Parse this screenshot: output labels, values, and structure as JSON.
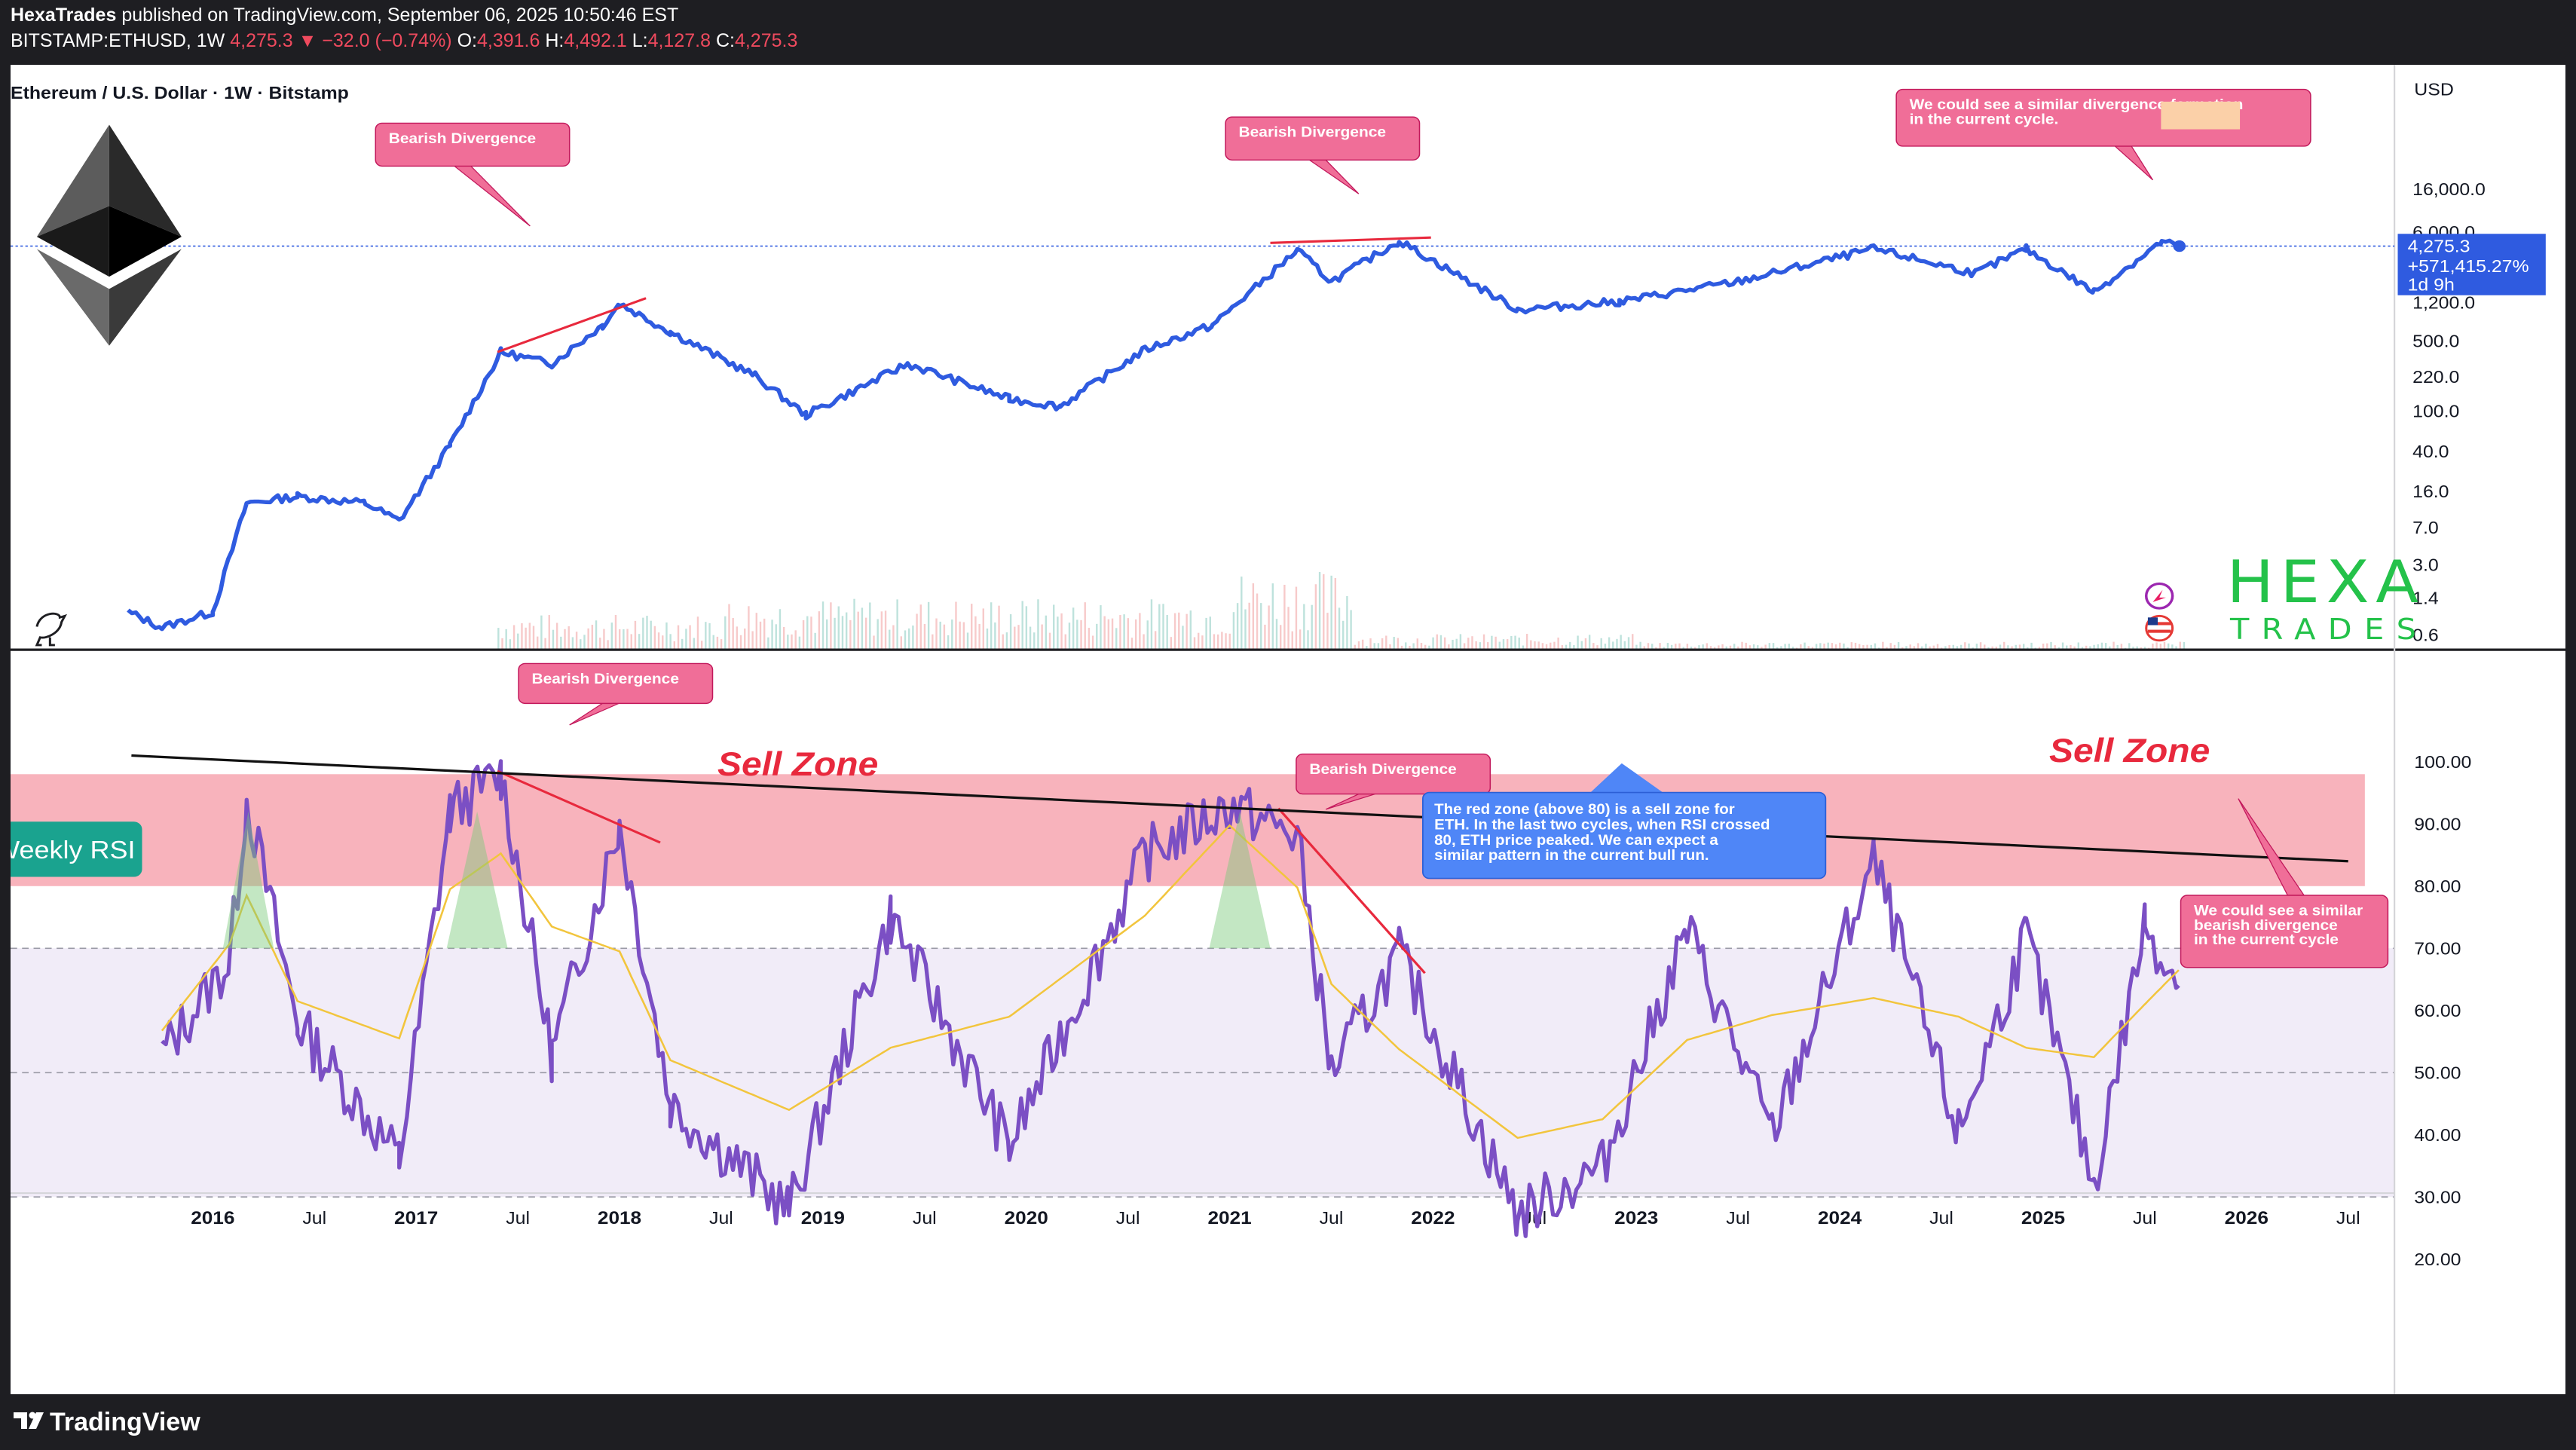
{
  "header": {
    "publisher": "HexaTrades",
    "published_text": " published on TradingView.com, September 06, 2025 10:50:46 EST",
    "symbol": "BITSTAMP:ETHUSD, 1W ",
    "last": "4,275.3",
    "change": " ▼ −32.0 (−0.74%)",
    "o_label": " O:",
    "o_value": "4,391.6",
    "h_label": " H:",
    "h_value": "4,492.1",
    "l_label": " L:",
    "l_value": "4,127.8",
    "c_label": " C:",
    "c_value": "4,275.3"
  },
  "footer": {
    "brand": "TradingView"
  },
  "colors": {
    "price_line": "#2f5be0",
    "rsi_line": "#7b4fc4",
    "rsi_ma": "#f2c53d",
    "sell_zone": "#f8b3bc",
    "rsi_band": "#f1ecf8",
    "callout": "#f06e98",
    "info_box": "#4f86f7",
    "accent_red": "#e8293d",
    "hexa_green": "#24c24a"
  },
  "chart_data": [
    {
      "type": "line",
      "title": "Ethereum / U.S. Dollar · 1W · Bitstamp",
      "scale": "log",
      "currency": "USD",
      "y_ticks": [
        "16,000.0",
        "6,000.0",
        "1,200.0",
        "500.0",
        "220.0",
        "100.0",
        "40.0",
        "16.0",
        "7.0",
        "3.0",
        "1.4",
        "0.6"
      ],
      "x_ticks": [
        "2016",
        "Jul",
        "2017",
        "Jul",
        "2018",
        "Jul",
        "2019",
        "Jul",
        "2020",
        "Jul",
        "2021",
        "Jul",
        "2022",
        "Jul",
        "2023",
        "Jul",
        "2024",
        "Jul",
        "2025",
        "Jul",
        "2026",
        "Jul"
      ],
      "series": [
        {
          "values_approx": [
            {
              "x": "2015-08",
              "y": 1
            },
            {
              "x": "2015-10",
              "y": 0.7
            },
            {
              "x": "2016-01",
              "y": 1
            },
            {
              "x": "2016-03",
              "y": 12
            },
            {
              "x": "2016-06",
              "y": 14
            },
            {
              "x": "2016-10",
              "y": 12
            },
            {
              "x": "2016-12",
              "y": 8
            },
            {
              "x": "2017-03",
              "y": 45
            },
            {
              "x": "2017-06",
              "y": 380
            },
            {
              "x": "2017-09",
              "y": 290
            },
            {
              "x": "2017-12",
              "y": 700
            },
            {
              "x": "2018-01",
              "y": 1150
            },
            {
              "x": "2018-04",
              "y": 600
            },
            {
              "x": "2018-09",
              "y": 220
            },
            {
              "x": "2018-12",
              "y": 90
            },
            {
              "x": "2019-06",
              "y": 290
            },
            {
              "x": "2019-12",
              "y": 130
            },
            {
              "x": "2020-03",
              "y": 110
            },
            {
              "x": "2020-08",
              "y": 400
            },
            {
              "x": "2020-12",
              "y": 700
            },
            {
              "x": "2021-05",
              "y": 3900
            },
            {
              "x": "2021-07",
              "y": 1900
            },
            {
              "x": "2021-11",
              "y": 4800
            },
            {
              "x": "2022-06",
              "y": 1000
            },
            {
              "x": "2022-12",
              "y": 1200
            },
            {
              "x": "2023-07",
              "y": 1900
            },
            {
              "x": "2024-03",
              "y": 4000
            },
            {
              "x": "2024-09",
              "y": 2300
            },
            {
              "x": "2024-12",
              "y": 4000
            },
            {
              "x": "2025-04",
              "y": 1500
            },
            {
              "x": "2025-08",
              "y": 4700
            },
            {
              "x": "2025-09",
              "y": 4275.3
            }
          ]
        }
      ],
      "last_label": {
        "price": "4,275.3",
        "change": "+571,415.27%",
        "countdown": "1d 9h"
      },
      "annotations": {
        "bearish1": "Bearish Divergence",
        "bearish2": "Bearish Divergence",
        "future": "We could see a similar divergence formation in the current cycle."
      }
    },
    {
      "type": "line",
      "title": "Weekly RSI",
      "y_ticks": [
        "100.00",
        "90.00",
        "80.00",
        "70.00",
        "60.00",
        "50.00",
        "40.00",
        "30.00",
        "20.00"
      ],
      "ylim": [
        20,
        100
      ],
      "bands": {
        "sell_zone": [
          80,
          98
        ],
        "upper": 70,
        "middle": 50,
        "lower": 30
      },
      "series": [
        {
          "values_approx": [
            {
              "x": "2015-10",
              "y": 53
            },
            {
              "x": "2016-02",
              "y": 68
            },
            {
              "x": "2016-03",
              "y": 94
            },
            {
              "x": "2016-06",
              "y": 58
            },
            {
              "x": "2016-12",
              "y": 36
            },
            {
              "x": "2017-03",
              "y": 92
            },
            {
              "x": "2017-06",
              "y": 98
            },
            {
              "x": "2017-09",
              "y": 53
            },
            {
              "x": "2018-01",
              "y": 90
            },
            {
              "x": "2018-04",
              "y": 45
            },
            {
              "x": "2018-11",
              "y": 28
            },
            {
              "x": "2019-05",
              "y": 75
            },
            {
              "x": "2019-12",
              "y": 38
            },
            {
              "x": "2020-08",
              "y": 85
            },
            {
              "x": "2021-01",
              "y": 93
            },
            {
              "x": "2021-05",
              "y": 88
            },
            {
              "x": "2021-07",
              "y": 50
            },
            {
              "x": "2021-11",
              "y": 69
            },
            {
              "x": "2022-06",
              "y": 27
            },
            {
              "x": "2022-11",
              "y": 35
            },
            {
              "x": "2023-04",
              "y": 73
            },
            {
              "x": "2023-09",
              "y": 40
            },
            {
              "x": "2024-03",
              "y": 84
            },
            {
              "x": "2024-08",
              "y": 40
            },
            {
              "x": "2024-12",
              "y": 72
            },
            {
              "x": "2025-04",
              "y": 32
            },
            {
              "x": "2025-07",
              "y": 74
            },
            {
              "x": "2025-09",
              "y": 64
            }
          ]
        }
      ],
      "annotations": {
        "sell_zone_1": "Sell Zone",
        "sell_zone_2": "Sell Zone",
        "bearish1": "Bearish Divergence",
        "bearish2": "Bearish Divergence",
        "info_lines": [
          "The red zone (above 80) is a sell zone for",
          "ETH. In the last two cycles, when RSI crossed",
          "80, ETH price peaked. We can expect a",
          "similar pattern in the current bull run."
        ],
        "right_lines": [
          "We could see a similar",
          "bearish divergence",
          "in the current cycle"
        ]
      }
    }
  ],
  "brand": {
    "hexa": "HEXA",
    "trades": "TRADES"
  }
}
